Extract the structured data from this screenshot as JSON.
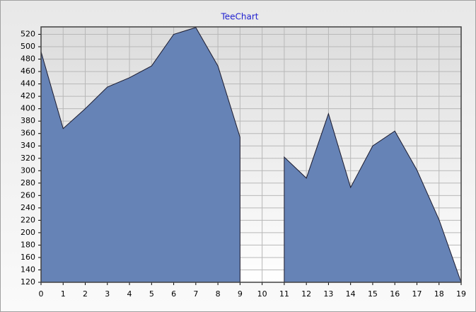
{
  "chart_data": {
    "type": "area",
    "title": "TeeChart",
    "x": [
      0,
      1,
      2,
      3,
      4,
      5,
      6,
      7,
      8,
      9,
      10,
      11,
      12,
      13,
      14,
      15,
      16,
      17,
      18,
      19
    ],
    "series": [
      {
        "color": "#6683b6",
        "values": [
          492,
          368,
          400,
          435,
          450,
          469,
          520,
          531,
          469,
          354,
          null,
          322,
          288,
          392,
          273,
          340,
          364,
          301,
          221,
          120
        ]
      }
    ],
    "xlim": [
      0,
      19
    ],
    "xticks": [
      0,
      1,
      2,
      3,
      4,
      5,
      6,
      7,
      8,
      9,
      10,
      11,
      12,
      13,
      14,
      15,
      16,
      17,
      18,
      19
    ],
    "ylim": [
      120,
      532
    ],
    "yticks": [
      120,
      140,
      160,
      180,
      200,
      220,
      240,
      260,
      280,
      300,
      320,
      340,
      360,
      380,
      400,
      420,
      440,
      460,
      480,
      500,
      520
    ],
    "grid": true
  }
}
